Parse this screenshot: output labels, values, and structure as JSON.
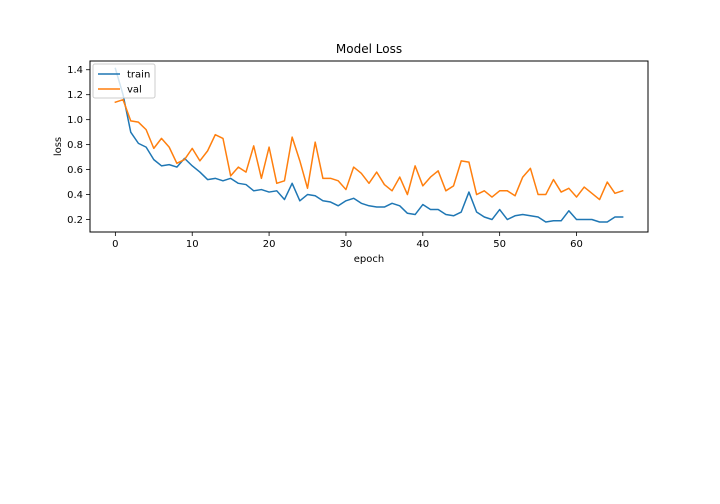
{
  "chart_data": {
    "type": "line",
    "title": "Model Loss",
    "xlabel": "epoch",
    "ylabel": "loss",
    "xlim": [
      -3.3,
      69.3
    ],
    "ylim": [
      0.1,
      1.47
    ],
    "xticks": [
      0,
      10,
      20,
      30,
      40,
      50,
      60
    ],
    "yticks": [
      0.2,
      0.4,
      0.6,
      0.8,
      1.0,
      1.2,
      1.4
    ],
    "xtick_labels": [
      "0",
      "10",
      "20",
      "30",
      "40",
      "50",
      "60"
    ],
    "ytick_labels": [
      "0.2",
      "0.4",
      "0.6",
      "0.8",
      "1.0",
      "1.2",
      "1.4"
    ],
    "grid": false,
    "legend": {
      "position": "top-left"
    },
    "series": [
      {
        "name": "train",
        "color": "#1f77b4",
        "x": [
          0,
          1,
          2,
          3,
          4,
          5,
          6,
          7,
          8,
          9,
          10,
          11,
          12,
          13,
          14,
          15,
          16,
          17,
          18,
          19,
          20,
          21,
          22,
          23,
          24,
          25,
          26,
          27,
          28,
          29,
          30,
          31,
          32,
          33,
          34,
          35,
          36,
          37,
          38,
          39,
          40,
          41,
          42,
          43,
          44,
          45,
          46,
          47,
          48,
          49,
          50,
          51,
          52,
          53,
          54,
          55,
          56,
          57,
          58,
          59,
          60,
          61,
          62,
          63,
          64,
          65,
          66
        ],
        "values": [
          1.41,
          1.2,
          0.9,
          0.81,
          0.78,
          0.68,
          0.63,
          0.64,
          0.62,
          0.69,
          0.63,
          0.58,
          0.52,
          0.53,
          0.51,
          0.53,
          0.49,
          0.48,
          0.43,
          0.44,
          0.42,
          0.43,
          0.36,
          0.49,
          0.35,
          0.4,
          0.39,
          0.35,
          0.34,
          0.31,
          0.35,
          0.37,
          0.33,
          0.31,
          0.3,
          0.3,
          0.33,
          0.31,
          0.25,
          0.24,
          0.32,
          0.28,
          0.28,
          0.24,
          0.23,
          0.26,
          0.42,
          0.26,
          0.22,
          0.2,
          0.28,
          0.2,
          0.23,
          0.24,
          0.23,
          0.22,
          0.18,
          0.19,
          0.19,
          0.27,
          0.2,
          0.2,
          0.2,
          0.18,
          0.18,
          0.22,
          0.22
        ]
      },
      {
        "name": "val",
        "color": "#ff7f0e",
        "x": [
          0,
          1,
          2,
          3,
          4,
          5,
          6,
          7,
          8,
          9,
          10,
          11,
          12,
          13,
          14,
          15,
          16,
          17,
          18,
          19,
          20,
          21,
          22,
          23,
          24,
          25,
          26,
          27,
          28,
          29,
          30,
          31,
          32,
          33,
          34,
          35,
          36,
          37,
          38,
          39,
          40,
          41,
          42,
          43,
          44,
          45,
          46,
          47,
          48,
          49,
          50,
          51,
          52,
          53,
          54,
          55,
          56,
          57,
          58,
          59,
          60,
          61,
          62,
          63,
          64,
          65,
          66
        ],
        "values": [
          1.14,
          1.16,
          0.99,
          0.98,
          0.92,
          0.77,
          0.85,
          0.78,
          0.65,
          0.68,
          0.77,
          0.67,
          0.75,
          0.88,
          0.85,
          0.55,
          0.62,
          0.58,
          0.79,
          0.53,
          0.78,
          0.49,
          0.51,
          0.86,
          0.67,
          0.45,
          0.82,
          0.53,
          0.53,
          0.51,
          0.44,
          0.62,
          0.57,
          0.49,
          0.58,
          0.48,
          0.43,
          0.54,
          0.4,
          0.63,
          0.47,
          0.54,
          0.59,
          0.43,
          0.47,
          0.67,
          0.66,
          0.4,
          0.43,
          0.38,
          0.43,
          0.43,
          0.39,
          0.54,
          0.61,
          0.4,
          0.4,
          0.52,
          0.42,
          0.45,
          0.38,
          0.46,
          0.41,
          0.36,
          0.5,
          0.41,
          0.43
        ]
      }
    ]
  }
}
